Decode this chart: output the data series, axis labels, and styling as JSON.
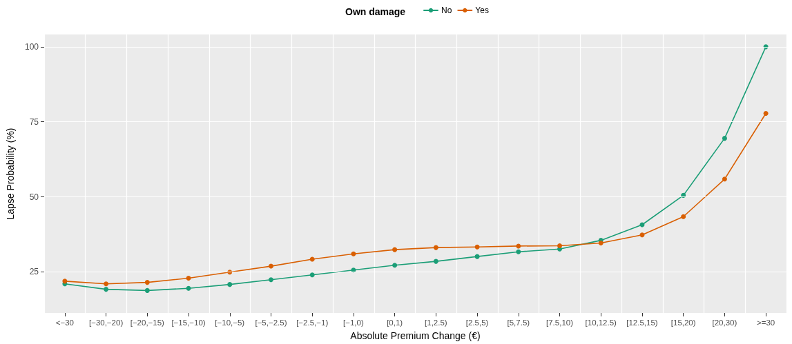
{
  "chart_data": {
    "type": "line",
    "xlabel": "Absolute Premium Change (€)",
    "ylabel": "Lapse Probability (%)",
    "legend_title": "Own damage",
    "categories": [
      "<−30",
      "[−30,−20)",
      "[−20,−15)",
      "[−15,−10)",
      "[−10,−5)",
      "[−5,−2.5)",
      "[−2.5,−1)",
      "[−1,0)",
      "[0,1)",
      "[1,2.5)",
      "[2.5,5)",
      "[5,7.5)",
      "[7.5,10)",
      "[10,12.5)",
      "[12.5,15)",
      "[15,20)",
      "[20,30)",
      ">=30"
    ],
    "series": [
      {
        "name": "No",
        "color": "#1b9e77",
        "values": [
          21.0,
          19.2,
          18.8,
          19.5,
          20.8,
          22.4,
          24.0,
          25.6,
          27.2,
          28.5,
          30.1,
          31.7,
          32.6,
          35.5,
          40.7,
          50.5,
          69.5,
          100
        ]
      },
      {
        "name": "Yes",
        "color": "#d95f02",
        "values": [
          21.9,
          21.0,
          21.5,
          22.9,
          24.9,
          26.9,
          29.2,
          31.0,
          32.4,
          33.1,
          33.3,
          33.6,
          33.7,
          34.6,
          37.3,
          43.4,
          55.9,
          77.8
        ]
      }
    ],
    "ylim": [
      11.3,
      104.1
    ],
    "yticks": [
      25,
      50,
      75,
      100
    ],
    "grid": true,
    "legend": "top",
    "marker": "circle",
    "line_style": "solid"
  }
}
